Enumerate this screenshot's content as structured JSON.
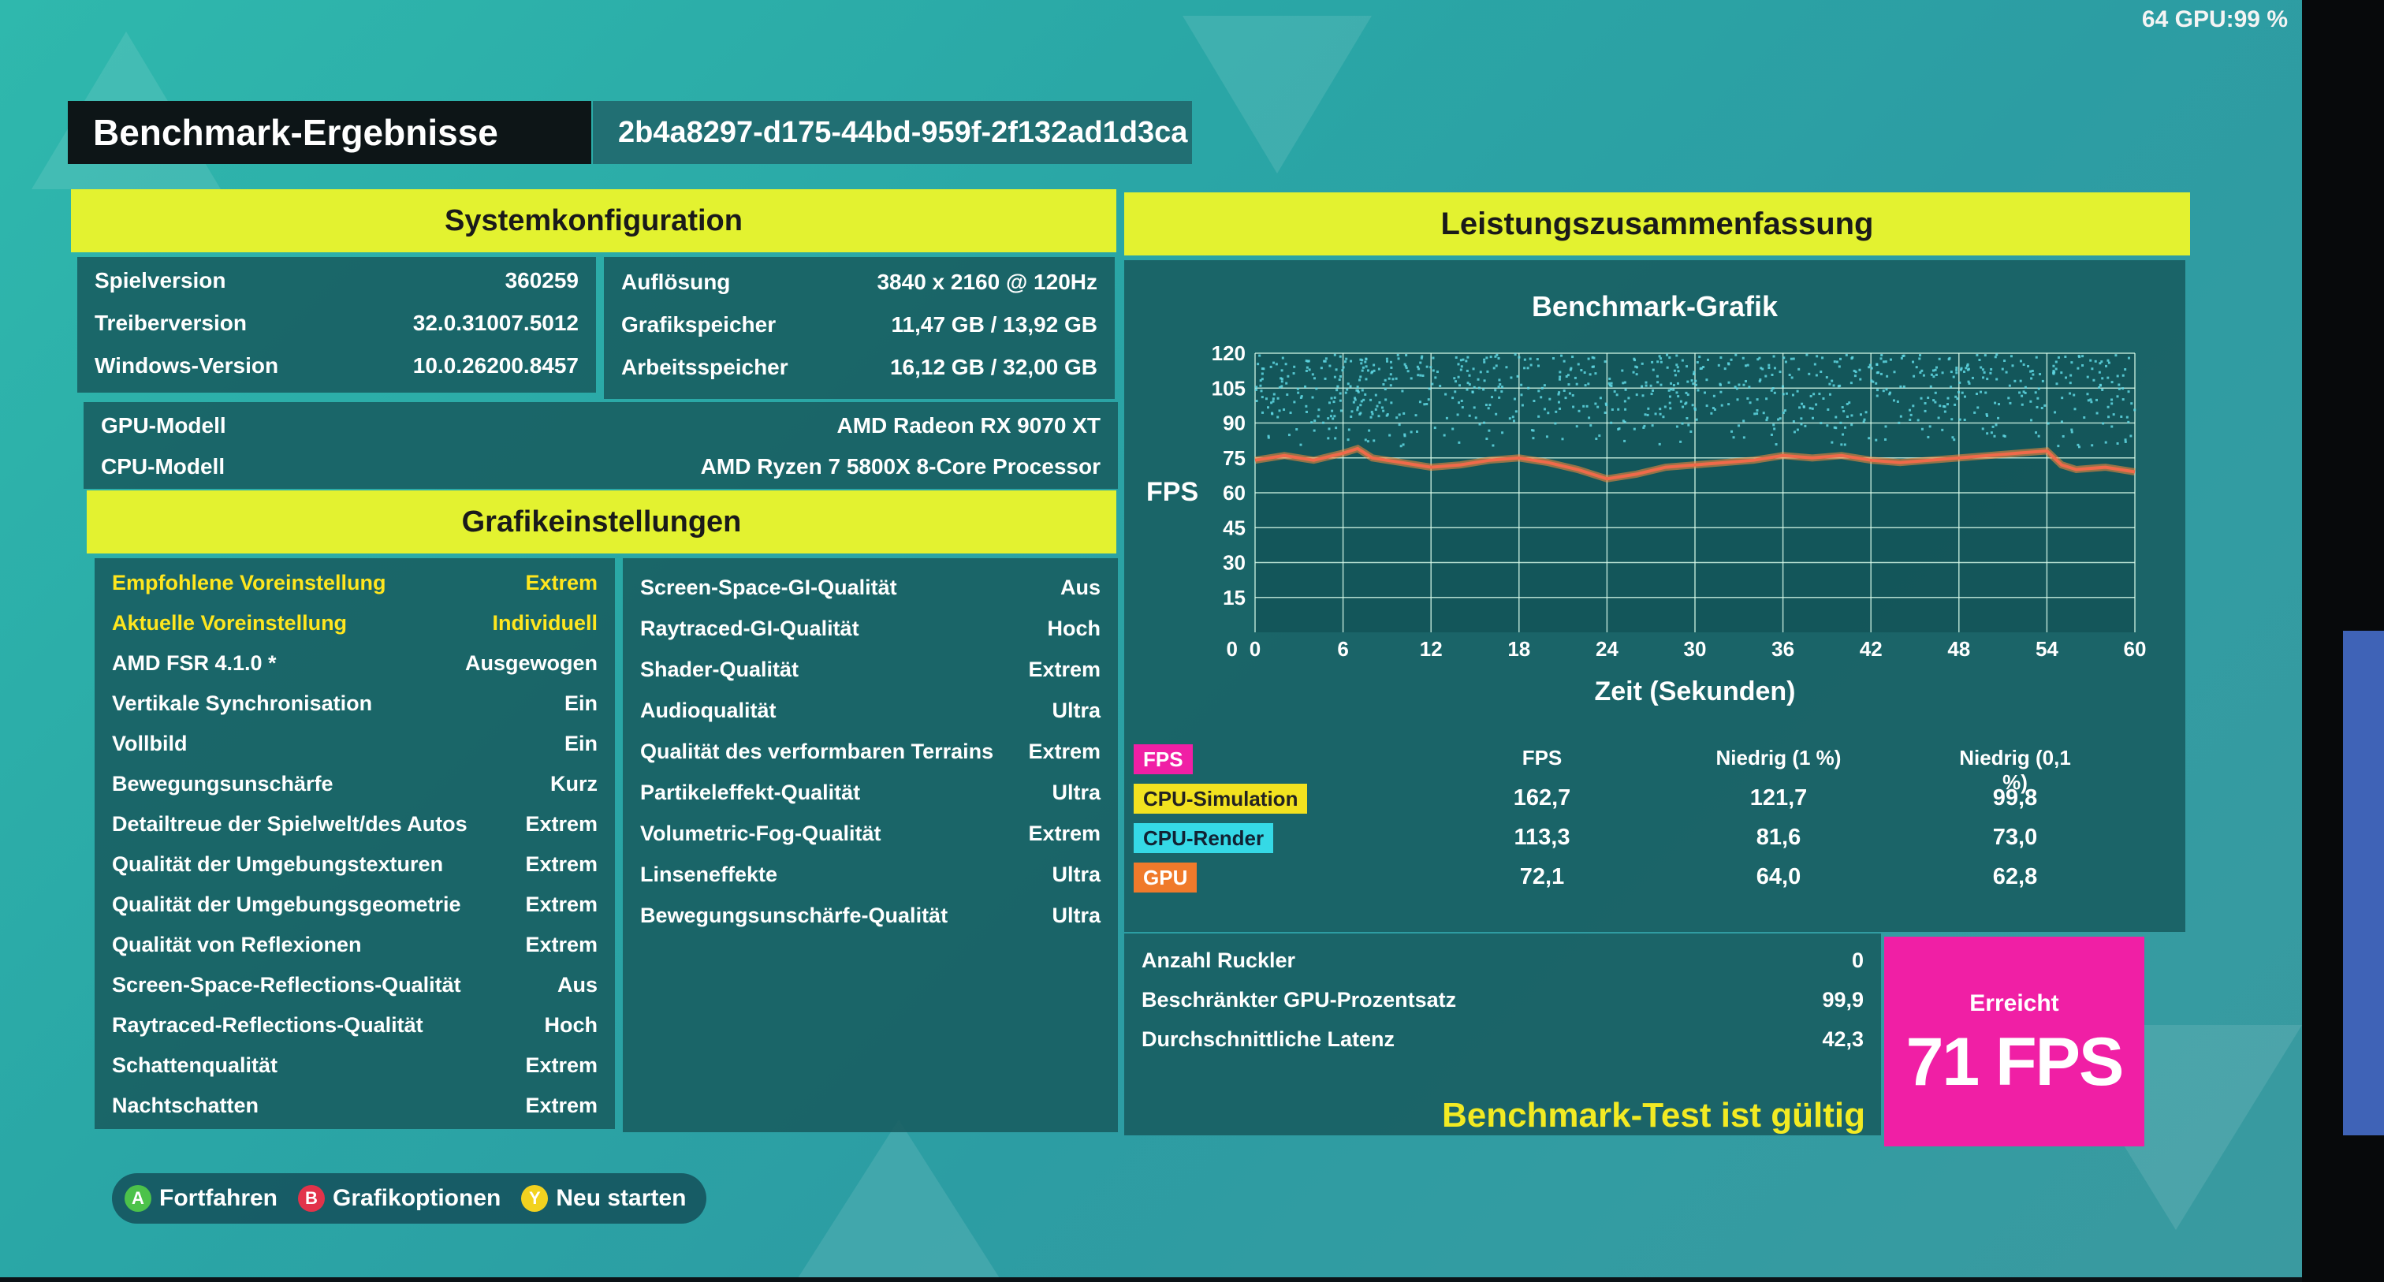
{
  "overlay": {
    "stats": "64 GPU:99 %"
  },
  "header": {
    "title": "Benchmark-Ergebnisse",
    "run_id": "2b4a8297-d175-44bd-959f-2f132ad1d3ca"
  },
  "system": {
    "heading": "Systemkonfiguration",
    "left": [
      {
        "label": "Spielversion",
        "value": "360259"
      },
      {
        "label": "Treiberversion",
        "value": "32.0.31007.5012"
      },
      {
        "label": "Windows-Version",
        "value": "10.0.26200.8457"
      }
    ],
    "right": [
      {
        "label": "Auflösung",
        "value": "3840 x 2160 @ 120Hz"
      },
      {
        "label": "Grafikspeicher",
        "value": "11,47 GB / 13,92 GB"
      },
      {
        "label": "Arbeitsspeicher",
        "value": "16,12 GB / 32,00 GB"
      }
    ],
    "gpu_label": "GPU-Modell",
    "gpu_value": "AMD Radeon RX 9070 XT",
    "cpu_label": "CPU-Modell",
    "cpu_value": "AMD Ryzen 7 5800X 8-Core Processor"
  },
  "graphics": {
    "heading": "Grafikeinstellungen",
    "left": [
      {
        "label": "Empfohlene Voreinstellung",
        "value": "Extrem",
        "highlight": true
      },
      {
        "label": "Aktuelle Voreinstellung",
        "value": "Individuell",
        "highlight": true
      },
      {
        "label": "AMD FSR 4.1.0 *",
        "value": "Ausgewogen"
      },
      {
        "label": "Vertikale Synchronisation",
        "value": "Ein"
      },
      {
        "label": "Vollbild",
        "value": "Ein"
      },
      {
        "label": "Bewegungsunschärfe",
        "value": "Kurz"
      },
      {
        "label": "Detailtreue der Spielwelt/des Autos",
        "value": "Extrem"
      },
      {
        "label": "Qualität der Umgebungstexturen",
        "value": "Extrem"
      },
      {
        "label": "Qualität der Umgebungsgeometrie",
        "value": "Extrem"
      },
      {
        "label": "Qualität von Reflexionen",
        "value": "Extrem"
      },
      {
        "label": "Screen-Space-Reflections-Qualität",
        "value": "Aus"
      },
      {
        "label": "Raytraced-Reflections-Qualität",
        "value": "Hoch"
      },
      {
        "label": "Schattenqualität",
        "value": "Extrem"
      },
      {
        "label": "Nachtschatten",
        "value": "Extrem"
      }
    ],
    "right": [
      {
        "label": "Screen-Space-GI-Qualität",
        "value": "Aus"
      },
      {
        "label": "Raytraced-GI-Qualität",
        "value": "Hoch"
      },
      {
        "label": "Shader-Qualität",
        "value": "Extrem"
      },
      {
        "label": "Audioqualität",
        "value": "Ultra"
      },
      {
        "label": "Qualität des verformbaren Terrains",
        "value": "Extrem"
      },
      {
        "label": "Partikeleffekt-Qualität",
        "value": "Ultra"
      },
      {
        "label": "Volumetric-Fog-Qualität",
        "value": "Extrem"
      },
      {
        "label": "Linseneffekte",
        "value": "Ultra"
      },
      {
        "label": "Bewegungsunschärfe-Qualität",
        "value": "Ultra"
      }
    ]
  },
  "performance": {
    "heading": "Leistungszusammenfassung",
    "chart_title": "Benchmark-Grafik",
    "table": {
      "tag": "FPS",
      "headers": [
        "FPS",
        "Niedrig (1 %)",
        "Niedrig (0,1 %)"
      ],
      "rows": [
        {
          "label": "CPU-Simulation",
          "values": [
            "162,7",
            "121,7",
            "99,8"
          ]
        },
        {
          "label": "CPU-Render",
          "values": [
            "113,3",
            "81,6",
            "73,0"
          ]
        },
        {
          "label": "GPU",
          "values": [
            "72,1",
            "64,0",
            "62,8"
          ]
        }
      ]
    },
    "stats": [
      {
        "label": "Anzahl Ruckler",
        "value": "0"
      },
      {
        "label": "Beschränkter GPU-Prozentsatz",
        "value": "99,9"
      },
      {
        "label": "Durchschnittliche Latenz",
        "value": "42,3"
      }
    ],
    "valid_text": "Benchmark-Test ist gültig",
    "reached_label": "Erreicht",
    "reached_value": "71 FPS"
  },
  "colors": {
    "yellow_bar": "#e3f230",
    "panel": "#185c60",
    "magenta": "#f01fa5",
    "cpu_sim": "#f2e21f",
    "cpu_render": "#35d9e6",
    "gpu": "#f07a2b",
    "scatter": "#5fd7e3",
    "line": "#f06a4a"
  },
  "chart_data": {
    "type": "line",
    "xlabel": "Zeit (Sekunden)",
    "ylabel": "FPS",
    "xlim": [
      0,
      60
    ],
    "ylim": [
      0,
      120
    ],
    "xticks": [
      0,
      6,
      12,
      18,
      24,
      30,
      36,
      42,
      48,
      54,
      60
    ],
    "yticks": [
      15,
      30,
      45,
      60,
      75,
      90,
      105,
      120
    ],
    "series": [
      {
        "name": "GPU",
        "x": [
          0,
          2,
          4,
          6,
          7,
          8,
          10,
          12,
          14,
          16,
          18,
          20,
          22,
          24,
          26,
          28,
          30,
          32,
          34,
          36,
          38,
          40,
          42,
          44,
          46,
          48,
          50,
          52,
          54,
          55,
          56,
          58,
          60
        ],
        "y": [
          74,
          76,
          74,
          77,
          79,
          75,
          73,
          71,
          72,
          74,
          75,
          73,
          70,
          66,
          68,
          71,
          72,
          73,
          74,
          76,
          75,
          76,
          74,
          73,
          74,
          75,
          76,
          77,
          78,
          72,
          70,
          71,
          69
        ]
      },
      {
        "name": "CPU-Render",
        "note": "scatter band 80-120 FPS"
      }
    ]
  },
  "buttons": [
    {
      "key": "A",
      "label": "Fortfahren",
      "color": "#4cc24a"
    },
    {
      "key": "B",
      "label": "Grafikoptionen",
      "color": "#e2334a"
    },
    {
      "key": "Y",
      "label": "Neu starten",
      "color": "#f2d21f"
    }
  ]
}
